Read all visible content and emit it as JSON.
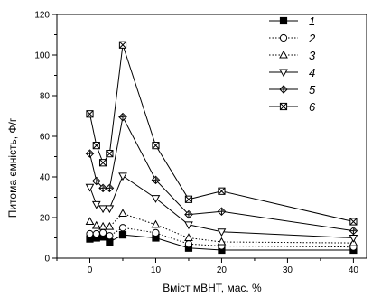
{
  "chart_data": {
    "type": "line",
    "xlabel": "Вміст мВНТ, мас. %",
    "ylabel": "Питома ємність, Ф/г",
    "xlim": [
      -5,
      42
    ],
    "ylim": [
      0,
      120
    ],
    "xticks": [
      0,
      10,
      20,
      30,
      40
    ],
    "yticks": [
      0,
      20,
      40,
      60,
      80,
      100,
      120
    ],
    "grid": false,
    "legend_position": "top-right",
    "series": [
      {
        "name": "1",
        "marker": "filled-square",
        "line": "solid",
        "x": [
          0,
          1,
          2,
          3,
          5,
          10,
          15,
          20,
          40
        ],
        "y": [
          9.5,
          10,
          10.5,
          8,
          11.5,
          10,
          5,
          4,
          4
        ]
      },
      {
        "name": "2",
        "marker": "open-circle",
        "line": "dotted",
        "x": [
          0,
          1,
          2,
          3,
          5,
          10,
          15,
          20,
          40
        ],
        "y": [
          12,
          12,
          12.5,
          11,
          15,
          12.5,
          7,
          6,
          5.5
        ]
      },
      {
        "name": "3",
        "marker": "open-triangle-up",
        "line": "dotted",
        "x": [
          0,
          1,
          2,
          3,
          5,
          10,
          15,
          20,
          40
        ],
        "y": [
          18,
          16,
          15.5,
          15.5,
          22,
          16.5,
          10,
          8,
          7.5
        ]
      },
      {
        "name": "4",
        "marker": "open-triangle-down",
        "line": "solid",
        "x": [
          0,
          1,
          2,
          3,
          5,
          10,
          15,
          20,
          40
        ],
        "y": [
          35,
          26.5,
          24.5,
          24.5,
          40.5,
          29.5,
          16.5,
          13,
          10
        ]
      },
      {
        "name": "5",
        "marker": "crossed-diamond",
        "line": "solid",
        "x": [
          0,
          1,
          2,
          3,
          5,
          10,
          15,
          20,
          40
        ],
        "y": [
          51.5,
          38,
          34.5,
          34.5,
          69.5,
          38.5,
          21.5,
          23,
          13.5
        ]
      },
      {
        "name": "6",
        "marker": "crossed-box",
        "line": "solid",
        "x": [
          0,
          1,
          2,
          3,
          5,
          10,
          15,
          20,
          40
        ],
        "y": [
          71,
          55.5,
          47,
          51.5,
          105,
          55.5,
          29,
          33,
          18
        ]
      }
    ]
  }
}
